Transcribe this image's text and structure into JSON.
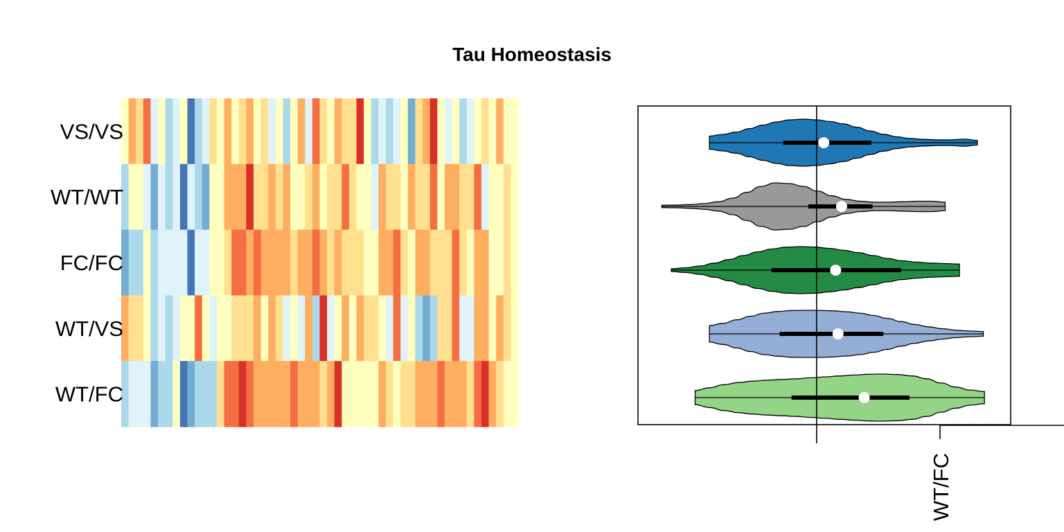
{
  "title": "Tau Homeostasis",
  "chart_data": [
    {
      "type": "heatmap",
      "panel": "left",
      "rows": [
        "VS/VS",
        "WT/WT",
        "FC/FC",
        "WT/VS",
        "WT/FC"
      ],
      "n_columns": 54,
      "color_scale": "diverging blue-yellow-red (low = blue, high = red)",
      "palette": [
        "#4575b4",
        "#74add1",
        "#abd9e9",
        "#e0f3f8",
        "#ffffbf",
        "#fee090",
        "#fdae61",
        "#f46d43",
        "#d73027"
      ],
      "values": [
        [
          4,
          6,
          5,
          7,
          3,
          4,
          2,
          3,
          4,
          0,
          2,
          3,
          5,
          4,
          6,
          4,
          5,
          6,
          4,
          5,
          3,
          4,
          2,
          4,
          6,
          3,
          7,
          5,
          4,
          6,
          5,
          5,
          8,
          4,
          2,
          3,
          2,
          3,
          4,
          1,
          5,
          6,
          8,
          4,
          3,
          4,
          2,
          3,
          4,
          5,
          4,
          6,
          4,
          4
        ],
        [
          2,
          4,
          4,
          3,
          1,
          3,
          2,
          3,
          0,
          3,
          2,
          1,
          4,
          4,
          6,
          6,
          6,
          8,
          5,
          5,
          6,
          5,
          6,
          4,
          4,
          5,
          6,
          4,
          5,
          5,
          7,
          5,
          4,
          4,
          3,
          6,
          5,
          5,
          4,
          6,
          5,
          5,
          7,
          4,
          6,
          6,
          5,
          5,
          7,
          3,
          4,
          4,
          5,
          4
        ],
        [
          1,
          2,
          2,
          4,
          2,
          3,
          3,
          3,
          3,
          0,
          3,
          3,
          4,
          4,
          5,
          7,
          7,
          6,
          7,
          6,
          6,
          6,
          6,
          5,
          6,
          6,
          7,
          6,
          5,
          6,
          5,
          5,
          5,
          4,
          4,
          6,
          6,
          7,
          5,
          4,
          6,
          6,
          5,
          5,
          5,
          7,
          5,
          4,
          6,
          6,
          4,
          4,
          5,
          4
        ],
        [
          6,
          5,
          5,
          4,
          2,
          3,
          2,
          3,
          4,
          4,
          7,
          4,
          3,
          4,
          4,
          5,
          5,
          5,
          6,
          4,
          6,
          5,
          3,
          4,
          3,
          6,
          2,
          8,
          3,
          4,
          6,
          4,
          6,
          5,
          5,
          4,
          3,
          7,
          3,
          4,
          2,
          1,
          2,
          5,
          5,
          7,
          3,
          3,
          6,
          6,
          4,
          6,
          5,
          4
        ],
        [
          2,
          3,
          3,
          3,
          1,
          2,
          2,
          4,
          0,
          1,
          2,
          2,
          2,
          5,
          7,
          7,
          8,
          7,
          6,
          6,
          6,
          6,
          6,
          7,
          6,
          6,
          6,
          5,
          6,
          8,
          4,
          4,
          4,
          4,
          4,
          6,
          5,
          4,
          5,
          5,
          6,
          6,
          6,
          7,
          6,
          6,
          6,
          5,
          7,
          8,
          6,
          5,
          4,
          4
        ]
      ]
    },
    {
      "type": "violin",
      "panel": "right",
      "categories": [
        "VS/VS",
        "WT/WT",
        "FC/FC",
        "WT/VS",
        "WT/FC"
      ],
      "colors": [
        "#1f78b4",
        "#999999",
        "#238b45",
        "#94aed6",
        "#93d486"
      ],
      "reference_line": 0,
      "series": [
        {
          "name": "VS/VS",
          "min": -0.9,
          "q1": -0.28,
          "median": 0.06,
          "q3": 0.46,
          "max": 1.35
        },
        {
          "name": "WT/WT",
          "min": -1.3,
          "q1": -0.07,
          "median": 0.21,
          "q3": 0.47,
          "max": 1.08
        },
        {
          "name": "FC/FC",
          "min": -1.22,
          "q1": -0.38,
          "median": 0.16,
          "q3": 0.71,
          "max": 1.2
        },
        {
          "name": "WT/VS",
          "min": -0.9,
          "q1": -0.31,
          "median": 0.18,
          "q3": 0.56,
          "max": 1.4
        },
        {
          "name": "WT/FC",
          "min": -1.02,
          "q1": -0.21,
          "median": 0.4,
          "q3": 0.78,
          "max": 1.41
        }
      ],
      "x_tick_labels": [
        "WT/FC"
      ]
    }
  ]
}
